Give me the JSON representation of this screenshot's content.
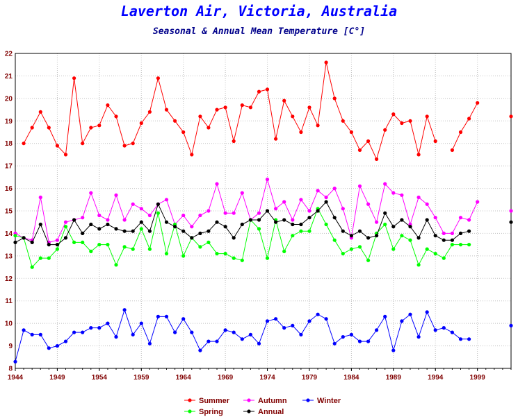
{
  "chart_data": {
    "type": "line",
    "title": "Laverton Air, Victoria, Australia",
    "subtitle": "Seasonal & Annual Mean Temperature [C°]",
    "xlim": [
      1944,
      2003
    ],
    "ylim": [
      8,
      22
    ],
    "x_ticks": [
      "1944",
      "1949",
      "1954",
      "1959",
      "1964",
      "1969",
      "1974",
      "1979",
      "1984",
      "1989",
      "1994",
      "1999"
    ],
    "y_ticks": [
      "8",
      "9",
      "10",
      "11",
      "12",
      "13",
      "14",
      "15",
      "16",
      "17",
      "18",
      "19",
      "20",
      "21",
      "22"
    ],
    "grid": true,
    "legend_position": "bottom",
    "x": [
      1944,
      1945,
      1946,
      1947,
      1948,
      1949,
      1950,
      1951,
      1952,
      1953,
      1954,
      1955,
      1956,
      1957,
      1958,
      1959,
      1960,
      1961,
      1962,
      1963,
      1964,
      1965,
      1966,
      1967,
      1968,
      1969,
      1970,
      1971,
      1972,
      1973,
      1974,
      1975,
      1976,
      1977,
      1978,
      1979,
      1980,
      1981,
      1982,
      1983,
      1984,
      1985,
      1986,
      1987,
      1988,
      1989,
      1990,
      1991,
      1992,
      1993,
      1994,
      1995,
      1996,
      1997,
      1998,
      1999,
      2000,
      2001,
      2002,
      2003
    ],
    "series": [
      {
        "name": "Summer",
        "color": "#ff0000",
        "values": [
          null,
          18.0,
          18.7,
          19.4,
          18.7,
          17.9,
          17.5,
          20.9,
          18.0,
          18.7,
          18.8,
          19.7,
          19.2,
          17.9,
          18.0,
          18.9,
          19.4,
          20.9,
          19.5,
          19.0,
          18.5,
          17.5,
          19.2,
          18.7,
          19.5,
          19.6,
          18.1,
          19.7,
          19.6,
          20.3,
          20.4,
          18.2,
          19.9,
          19.2,
          18.5,
          19.6,
          18.8,
          21.6,
          20.0,
          19.0,
          18.5,
          17.7,
          18.1,
          17.3,
          18.6,
          19.3,
          18.9,
          19.0,
          17.5,
          19.2,
          18.1,
          null,
          17.7,
          18.5,
          19.1,
          19.8,
          null,
          null,
          null,
          19.2
        ]
      },
      {
        "name": "Autumn",
        "color": "#ff00ff",
        "values": [
          14.0,
          13.8,
          13.7,
          15.6,
          13.6,
          13.7,
          14.5,
          14.6,
          14.7,
          15.8,
          14.8,
          14.6,
          15.7,
          14.6,
          15.3,
          15.1,
          14.8,
          15.3,
          15.5,
          14.4,
          14.8,
          14.3,
          14.8,
          15.0,
          16.2,
          14.9,
          14.9,
          15.8,
          14.6,
          14.9,
          16.4,
          15.1,
          15.4,
          14.6,
          15.5,
          15.0,
          15.9,
          15.6,
          16.0,
          15.1,
          13.8,
          16.1,
          15.3,
          14.5,
          16.2,
          15.8,
          15.7,
          14.4,
          15.6,
          15.3,
          14.7,
          14.0,
          14.0,
          14.7,
          14.6,
          15.4,
          null,
          null,
          null,
          15.0
        ]
      },
      {
        "name": "Winter",
        "color": "#0000ff",
        "values": [
          8.3,
          9.7,
          9.5,
          9.5,
          8.9,
          9.0,
          9.2,
          9.6,
          9.6,
          9.8,
          9.8,
          10.0,
          9.4,
          10.6,
          9.5,
          10.0,
          9.1,
          10.3,
          10.3,
          9.6,
          10.2,
          9.6,
          8.8,
          9.2,
          9.2,
          9.7,
          9.6,
          9.3,
          9.5,
          9.1,
          10.1,
          10.2,
          9.8,
          9.9,
          9.5,
          10.1,
          10.4,
          10.2,
          9.1,
          9.4,
          9.5,
          9.2,
          9.2,
          9.7,
          10.3,
          8.8,
          10.1,
          10.4,
          9.4,
          10.5,
          9.7,
          9.8,
          9.6,
          9.3,
          9.3,
          null,
          null,
          null,
          null,
          9.9
        ]
      },
      {
        "name": "Spring",
        "color": "#00ff00",
        "values": [
          13.9,
          13.8,
          12.5,
          12.9,
          12.9,
          13.3,
          14.3,
          13.6,
          13.6,
          13.2,
          13.5,
          13.5,
          12.6,
          13.4,
          13.3,
          14.2,
          13.3,
          14.9,
          13.1,
          14.4,
          13.0,
          13.8,
          13.4,
          13.6,
          13.1,
          13.1,
          12.9,
          12.8,
          14.6,
          14.2,
          12.9,
          14.6,
          13.2,
          13.9,
          14.1,
          14.1,
          15.1,
          14.4,
          13.7,
          13.1,
          13.3,
          13.4,
          12.8,
          14.0,
          14.4,
          13.3,
          13.9,
          13.7,
          12.6,
          13.3,
          13.1,
          12.9,
          13.5,
          13.5,
          13.5,
          null,
          null,
          null,
          null,
          null
        ]
      },
      {
        "name": "Annual",
        "color": "#000000",
        "values": [
          13.6,
          13.8,
          13.6,
          14.4,
          13.5,
          13.5,
          13.8,
          14.6,
          14.0,
          14.4,
          14.2,
          14.4,
          14.2,
          14.1,
          14.1,
          14.5,
          14.1,
          15.3,
          14.5,
          14.3,
          14.1,
          13.8,
          14.0,
          14.1,
          14.5,
          14.3,
          13.8,
          14.4,
          14.6,
          14.6,
          15.0,
          14.5,
          14.6,
          14.4,
          14.4,
          14.7,
          15.0,
          15.4,
          14.7,
          14.1,
          13.9,
          14.1,
          13.8,
          13.9,
          14.9,
          14.3,
          14.6,
          14.3,
          13.8,
          14.6,
          13.9,
          13.7,
          13.7,
          14.0,
          14.1,
          null,
          null,
          null,
          null,
          14.5
        ]
      }
    ]
  }
}
